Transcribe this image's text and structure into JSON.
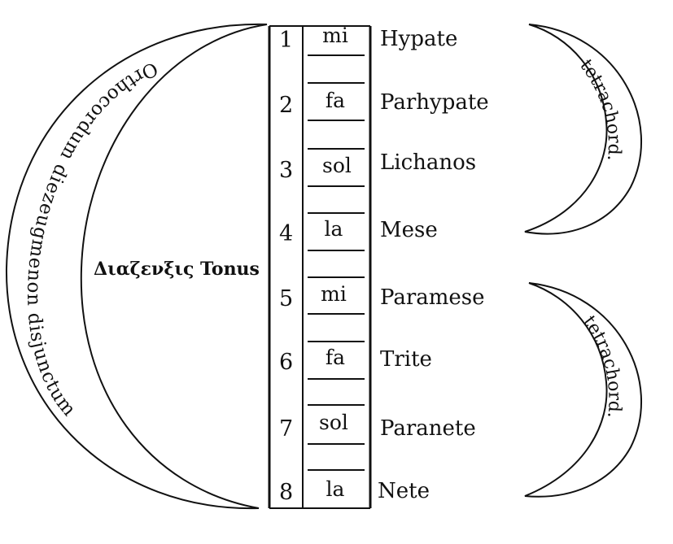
{
  "arc_label": "Orthocordum diezeugmenon disjunctum",
  "diazeuxis_label": "Διαζενξις Tonus",
  "tetrachord_labels": [
    "tetrachord.",
    "tetrachord."
  ],
  "rows": [
    {
      "number": "1",
      "syllable": "mi",
      "name": "Hypate"
    },
    {
      "number": "2",
      "syllable": "fa",
      "name": "Parhypate"
    },
    {
      "number": "3",
      "syllable": "sol",
      "name": "Lichanos"
    },
    {
      "number": "4",
      "syllable": "la",
      "name": "Mese"
    },
    {
      "number": "5",
      "syllable": "mi",
      "name": "Paramese"
    },
    {
      "number": "6",
      "syllable": "fa",
      "name": "Trite"
    },
    {
      "number": "7",
      "syllable": "sol",
      "name": "Paranete"
    },
    {
      "number": "8",
      "syllable": "la",
      "name": "Nete"
    }
  ]
}
